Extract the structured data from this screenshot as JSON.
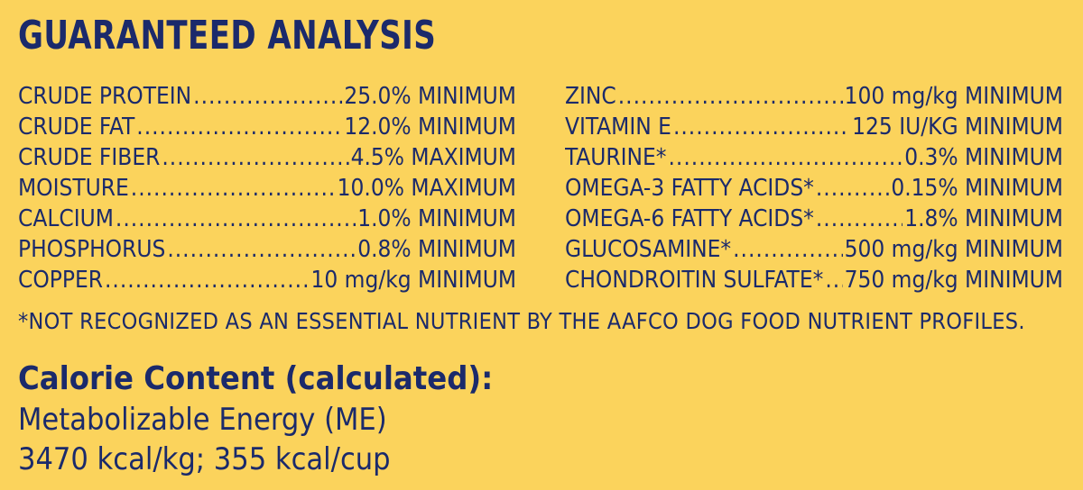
{
  "title": "GUARANTEED ANALYSIS",
  "left_column": [
    {
      "name": "CRUDE PROTEIN",
      "value": "25.0% MINIMUM"
    },
    {
      "name": "CRUDE FAT",
      "value": "12.0% MINIMUM"
    },
    {
      "name": "CRUDE FIBER",
      "value": "4.5% MAXIMUM"
    },
    {
      "name": "MOISTURE",
      "value": "10.0% MAXIMUM"
    },
    {
      "name": "CALCIUM",
      "value": "1.0% MINIMUM"
    },
    {
      "name": "PHOSPHORUS",
      "value": "0.8% MINIMUM"
    },
    {
      "name": "COPPER",
      "value": "10 mg/kg MINIMUM"
    }
  ],
  "right_column": [
    {
      "name": "ZINC",
      "value": "100 mg/kg MINIMUM"
    },
    {
      "name": "VITAMIN E",
      "value": "125 IU/KG MINIMUM"
    },
    {
      "name": "TAURINE*",
      "value": "0.3% MINIMUM"
    },
    {
      "name": "OMEGA-3 FATTY ACIDS*",
      "value": "0.15% MINIMUM"
    },
    {
      "name": "OMEGA-6 FATTY ACIDS*",
      "value": "1.8% MINIMUM"
    },
    {
      "name": "GLUCOSAMINE*",
      "value": "500 mg/kg MINIMUM"
    },
    {
      "name": "CHONDROITIN SULFATE*",
      "value": "750 mg/kg MINIMUM"
    }
  ],
  "footnote": "*NOT RECOGNIZED AS AN ESSENTIAL NUTRIENT BY THE AAFCO DOG FOOD NUTRIENT PROFILES.",
  "calorie": {
    "heading": "Calorie Content (calculated):",
    "line1": "Metabolizable Energy (ME)",
    "line2": "3470 kcal/kg; 355 kcal/cup"
  },
  "colors": {
    "background": "#fbd35c",
    "text": "#1b2a6b"
  }
}
